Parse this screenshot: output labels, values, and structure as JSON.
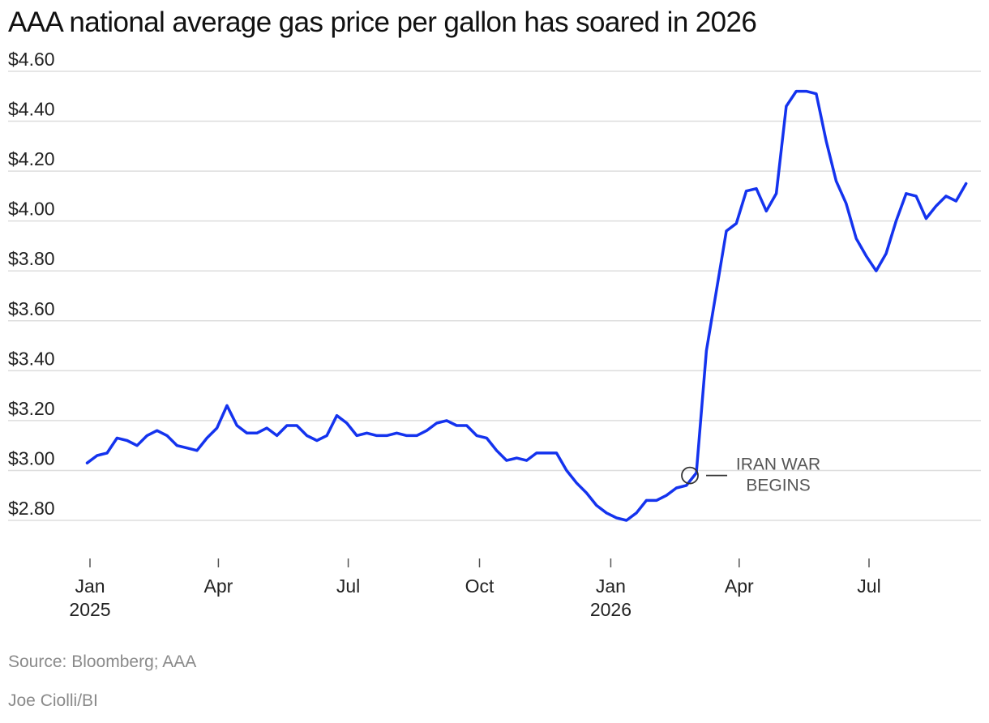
{
  "chart_data": {
    "type": "line",
    "title": "AAA national average gas price per gallon has soared in 2026",
    "xlabel": "",
    "ylabel": "",
    "ylim": [
      2.7,
      4.6
    ],
    "yticks": [
      {
        "value": 2.8,
        "label": "$2.80"
      },
      {
        "value": 3.0,
        "label": "$3.00"
      },
      {
        "value": 3.2,
        "label": "$3.20"
      },
      {
        "value": 3.4,
        "label": "$3.40"
      },
      {
        "value": 3.6,
        "label": "$3.60"
      },
      {
        "value": 3.8,
        "label": "$3.80"
      },
      {
        "value": 4.0,
        "label": "$4.00"
      },
      {
        "value": 4.2,
        "label": "$4.20"
      },
      {
        "value": 4.4,
        "label": "$4.40"
      },
      {
        "value": 4.6,
        "label": "$4.60"
      }
    ],
    "xticks": [
      {
        "date": "2025-01-01",
        "label": "Jan",
        "label2": "2025"
      },
      {
        "date": "2025-04-01",
        "label": "Apr",
        "label2": ""
      },
      {
        "date": "2025-07-01",
        "label": "Jul",
        "label2": ""
      },
      {
        "date": "2025-10-01",
        "label": "Oct",
        "label2": ""
      },
      {
        "date": "2026-01-01",
        "label": "Jan",
        "label2": "2026"
      },
      {
        "date": "2026-04-01",
        "label": "Apr",
        "label2": ""
      },
      {
        "date": "2026-07-01",
        "label": "Jul",
        "label2": ""
      }
    ],
    "grid": true,
    "legend": "none",
    "series": [
      {
        "color": "#1433ee",
        "points": [
          [
            "2024-12-30",
            3.03
          ],
          [
            "2025-01-06",
            3.06
          ],
          [
            "2025-01-13",
            3.07
          ],
          [
            "2025-01-20",
            3.13
          ],
          [
            "2025-01-27",
            3.12
          ],
          [
            "2025-02-03",
            3.1
          ],
          [
            "2025-02-10",
            3.14
          ],
          [
            "2025-02-17",
            3.16
          ],
          [
            "2025-02-24",
            3.14
          ],
          [
            "2025-03-03",
            3.1
          ],
          [
            "2025-03-10",
            3.09
          ],
          [
            "2025-03-17",
            3.08
          ],
          [
            "2025-03-24",
            3.13
          ],
          [
            "2025-03-31",
            3.17
          ],
          [
            "2025-04-07",
            3.26
          ],
          [
            "2025-04-14",
            3.18
          ],
          [
            "2025-04-21",
            3.15
          ],
          [
            "2025-04-28",
            3.15
          ],
          [
            "2025-05-05",
            3.17
          ],
          [
            "2025-05-12",
            3.14
          ],
          [
            "2025-05-19",
            3.18
          ],
          [
            "2025-05-26",
            3.18
          ],
          [
            "2025-06-02",
            3.14
          ],
          [
            "2025-06-09",
            3.12
          ],
          [
            "2025-06-16",
            3.14
          ],
          [
            "2025-06-23",
            3.22
          ],
          [
            "2025-06-30",
            3.19
          ],
          [
            "2025-07-07",
            3.14
          ],
          [
            "2025-07-14",
            3.15
          ],
          [
            "2025-07-21",
            3.14
          ],
          [
            "2025-07-28",
            3.14
          ],
          [
            "2025-08-04",
            3.15
          ],
          [
            "2025-08-11",
            3.14
          ],
          [
            "2025-08-18",
            3.14
          ],
          [
            "2025-08-25",
            3.16
          ],
          [
            "2025-09-01",
            3.19
          ],
          [
            "2025-09-08",
            3.2
          ],
          [
            "2025-09-15",
            3.18
          ],
          [
            "2025-09-22",
            3.18
          ],
          [
            "2025-09-29",
            3.14
          ],
          [
            "2025-10-06",
            3.13
          ],
          [
            "2025-10-13",
            3.08
          ],
          [
            "2025-10-20",
            3.04
          ],
          [
            "2025-10-27",
            3.05
          ],
          [
            "2025-11-03",
            3.04
          ],
          [
            "2025-11-10",
            3.07
          ],
          [
            "2025-11-17",
            3.07
          ],
          [
            "2025-11-24",
            3.07
          ],
          [
            "2025-12-01",
            3.0
          ],
          [
            "2025-12-08",
            2.95
          ],
          [
            "2025-12-15",
            2.91
          ],
          [
            "2025-12-22",
            2.86
          ],
          [
            "2025-12-29",
            2.83
          ],
          [
            "2026-01-05",
            2.81
          ],
          [
            "2026-01-12",
            2.8
          ],
          [
            "2026-01-19",
            2.83
          ],
          [
            "2026-01-26",
            2.88
          ],
          [
            "2026-02-02",
            2.88
          ],
          [
            "2026-02-09",
            2.9
          ],
          [
            "2026-02-16",
            2.93
          ],
          [
            "2026-02-23",
            2.94
          ],
          [
            "2026-03-02",
            2.99
          ],
          [
            "2026-03-09",
            3.48
          ],
          [
            "2026-03-16",
            3.72
          ],
          [
            "2026-03-23",
            3.96
          ],
          [
            "2026-03-30",
            3.99
          ],
          [
            "2026-04-06",
            4.12
          ],
          [
            "2026-04-13",
            4.13
          ],
          [
            "2026-04-20",
            4.04
          ],
          [
            "2026-04-27",
            4.11
          ],
          [
            "2026-05-04",
            4.46
          ],
          [
            "2026-05-11",
            4.52
          ],
          [
            "2026-05-18",
            4.52
          ],
          [
            "2026-05-25",
            4.51
          ],
          [
            "2026-06-01",
            4.32
          ],
          [
            "2026-06-08",
            4.16
          ],
          [
            "2026-06-15",
            4.07
          ],
          [
            "2026-06-22",
            3.93
          ],
          [
            "2026-06-29",
            3.86
          ],
          [
            "2026-07-06",
            3.8
          ],
          [
            "2026-07-13",
            3.87
          ],
          [
            "2026-07-20",
            4.0
          ],
          [
            "2026-07-27",
            4.11
          ],
          [
            "2026-08-03",
            4.1
          ],
          [
            "2026-08-10",
            4.01
          ],
          [
            "2026-08-17",
            4.06
          ],
          [
            "2026-08-24",
            4.1
          ],
          [
            "2026-08-31",
            4.08
          ],
          [
            "2026-09-07",
            4.15
          ]
        ]
      }
    ],
    "annotations": [
      {
        "date": "2026-03-02",
        "value": 2.98,
        "line1": "IRAN WAR",
        "line2": "BEGINS"
      }
    ]
  },
  "footer": {
    "source": "Source: Bloomberg; AAA",
    "credit": "Joe Ciolli/BI"
  },
  "colors": {
    "line": "#1433ee",
    "grid": "#dddddd",
    "axis": "#555555"
  }
}
